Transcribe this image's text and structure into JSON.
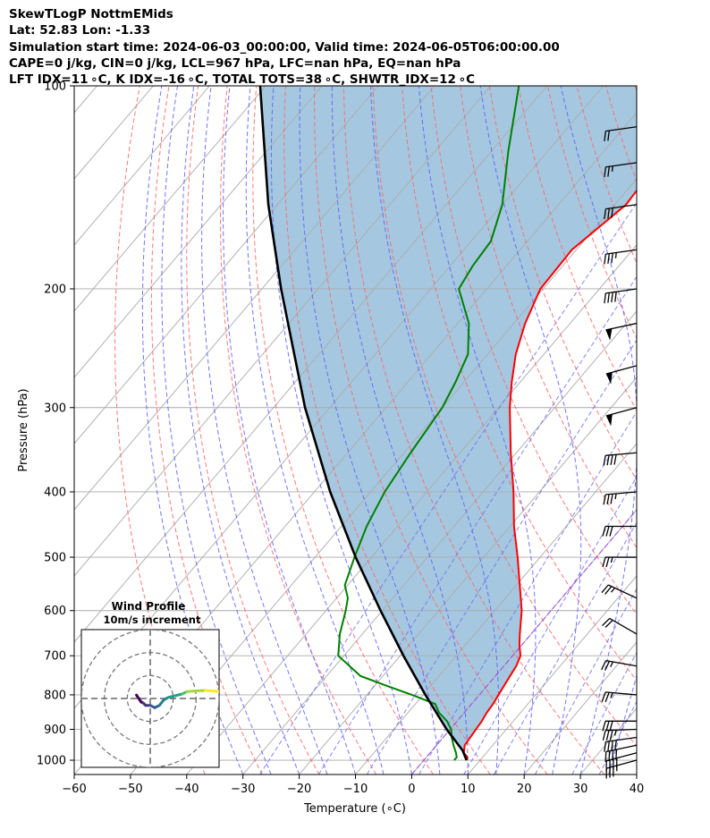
{
  "header": {
    "line1": "SkewTLogP NottmEMids",
    "line2": "Lat: 52.83   Lon: -1.33",
    "line3": "Simulation start time: 2024-06-03_00:00:00, Valid time: 2024-06-05T06:00:00.00",
    "line4": "CAPE=0 j/kg, CIN=0 j/kg, LCL=967 hPa, LFC=nan hPa, EQ=nan hPa",
    "line5": "LFT IDX=11 ∘C, K IDX=-16 ∘C, TOTAL TOTS=38 ∘C, SHWTR_IDX=12 ∘C"
  },
  "colors": {
    "temperature": "#ff0000",
    "dewpoint": "#008000",
    "parcel": "#000000",
    "shade": "#a5c8e0",
    "dry_adiabat": "#ff6060",
    "moist_adiabat": "#5a5aff",
    "mixing_ratio": "#6e6ef0",
    "isotherm": "#aaaaaa",
    "zero_isotherm": "#a040e0"
  },
  "chart_data": [
    {
      "type": "line",
      "chart_kind": "skew-t log-p diagram",
      "xlabel": "Temperature (∘C)",
      "ylabel": "Pressure (hPa)",
      "xlim": [
        -60,
        40
      ],
      "ylim": [
        1050,
        100
      ],
      "yscale": "log",
      "grid": true,
      "xticks": [
        -60,
        -50,
        -40,
        -30,
        -20,
        -10,
        0,
        10,
        20,
        30,
        40
      ],
      "yticks": [
        100,
        200,
        300,
        400,
        500,
        600,
        700,
        800,
        900,
        1000
      ],
      "series": [
        {
          "role": "temperature",
          "color": "#ff0000",
          "points": [
            [
              1000,
              7.6
            ],
            [
              990,
              7.3
            ],
            [
              975,
              6.0
            ],
            [
              950,
              5.0
            ],
            [
              925,
              4.8
            ],
            [
              900,
              4.6
            ],
            [
              875,
              4.4
            ],
            [
              850,
              4.0
            ],
            [
              825,
              3.8
            ],
            [
              800,
              3.4
            ],
            [
              775,
              3.0
            ],
            [
              750,
              2.6
            ],
            [
              725,
              2.2
            ],
            [
              700,
              1.4
            ],
            [
              675,
              -0.4
            ],
            [
              650,
              -2.0
            ],
            [
              600,
              -5.2
            ],
            [
              550,
              -9.4
            ],
            [
              500,
              -14.0
            ],
            [
              450,
              -19.3
            ],
            [
              400,
              -24.6
            ],
            [
              350,
              -31.0
            ],
            [
              300,
              -38.0
            ],
            [
              275,
              -41.5
            ],
            [
              250,
              -45.0
            ],
            [
              225,
              -48.0
            ],
            [
              200,
              -50.5
            ],
            [
              175,
              -50.8
            ],
            [
              150,
              -48.0
            ],
            [
              135,
              -48.5
            ],
            [
              125,
              -48.0
            ],
            [
              115,
              -48.0
            ],
            [
              100,
              -48.5
            ]
          ]
        },
        {
          "role": "dewpoint",
          "color": "#008000",
          "points": [
            [
              1000,
              5.4
            ],
            [
              990,
              5.4
            ],
            [
              975,
              4.6
            ],
            [
              950,
              3.0
            ],
            [
              925,
              1.5
            ],
            [
              900,
              0.2
            ],
            [
              875,
              -1.8
            ],
            [
              850,
              -4.5
            ],
            [
              825,
              -6.5
            ],
            [
              800,
              -12.0
            ],
            [
              775,
              -18.0
            ],
            [
              750,
              -24.0
            ],
            [
              700,
              -31.0
            ],
            [
              650,
              -34.0
            ],
            [
              600,
              -36.5
            ],
            [
              575,
              -38.0
            ],
            [
              550,
              -40.5
            ],
            [
              500,
              -43.0
            ],
            [
              450,
              -45.5
            ],
            [
              400,
              -47.5
            ],
            [
              350,
              -48.8
            ],
            [
              300,
              -50.0
            ],
            [
              275,
              -51.5
            ],
            [
              250,
              -53.5
            ],
            [
              225,
              -58.0
            ],
            [
              200,
              -65.0
            ],
            [
              185,
              -66.0
            ],
            [
              170,
              -66.5
            ],
            [
              150,
              -70.0
            ],
            [
              125,
              -77.0
            ],
            [
              100,
              -85.0
            ]
          ]
        },
        {
          "role": "parcel profile",
          "color": "#000000",
          "points": [
            [
              1000,
              7.6
            ],
            [
              967,
              5.4
            ],
            [
              900,
              -0.6
            ],
            [
              800,
              -9.6
            ],
            [
              700,
              -19.4
            ],
            [
              600,
              -30.3
            ],
            [
              500,
              -42.8
            ],
            [
              400,
              -57.2
            ],
            [
              300,
              -74.4
            ],
            [
              200,
              -96.6
            ],
            [
              150,
              -111.6
            ],
            [
              100,
              -131.0
            ]
          ]
        }
      ],
      "wind_barbs": [
        {
          "pressure": 1000,
          "speed_kt": 35,
          "direction_deg": 255
        },
        {
          "pressure": 975,
          "speed_kt": 40,
          "direction_deg": 255
        },
        {
          "pressure": 950,
          "speed_kt": 40,
          "direction_deg": 258
        },
        {
          "pressure": 925,
          "speed_kt": 40,
          "direction_deg": 262
        },
        {
          "pressure": 900,
          "speed_kt": 35,
          "direction_deg": 268
        },
        {
          "pressure": 875,
          "speed_kt": 30,
          "direction_deg": 270
        },
        {
          "pressure": 800,
          "speed_kt": 25,
          "direction_deg": 275
        },
        {
          "pressure": 725,
          "speed_kt": 25,
          "direction_deg": 280
        },
        {
          "pressure": 650,
          "speed_kt": 20,
          "direction_deg": 300
        },
        {
          "pressure": 575,
          "speed_kt": 25,
          "direction_deg": 295
        },
        {
          "pressure": 500,
          "speed_kt": 25,
          "direction_deg": 270
        },
        {
          "pressure": 450,
          "speed_kt": 30,
          "direction_deg": 270
        },
        {
          "pressure": 400,
          "speed_kt": 35,
          "direction_deg": 265
        },
        {
          "pressure": 350,
          "speed_kt": 40,
          "direction_deg": 265
        },
        {
          "pressure": 300,
          "speed_kt": 50,
          "direction_deg": 255
        },
        {
          "pressure": 260,
          "speed_kt": 50,
          "direction_deg": 255
        },
        {
          "pressure": 225,
          "speed_kt": 50,
          "direction_deg": 258
        },
        {
          "pressure": 200,
          "speed_kt": 40,
          "direction_deg": 262
        },
        {
          "pressure": 175,
          "speed_kt": 35,
          "direction_deg": 262
        },
        {
          "pressure": 150,
          "speed_kt": 30,
          "direction_deg": 262
        },
        {
          "pressure": 130,
          "speed_kt": 25,
          "direction_deg": 262
        },
        {
          "pressure": 115,
          "speed_kt": 20,
          "direction_deg": 262
        }
      ]
    },
    {
      "type": "line",
      "chart_kind": "hodograph",
      "title": "Wind Profile",
      "subtitle": "10m/s increment",
      "rings": [
        10,
        20,
        30
      ],
      "xlim": [
        -30,
        30
      ],
      "ylim": [
        -30,
        30
      ],
      "points": [
        [
          -6.0,
          1.5
        ],
        [
          -5.0,
          0.0
        ],
        [
          -4.0,
          -1.5
        ],
        [
          -3.0,
          -2.0
        ],
        [
          -2.0,
          -3.0
        ],
        [
          0.0,
          -3.0
        ],
        [
          2.0,
          -4.0
        ],
        [
          4.0,
          -3.0
        ],
        [
          6.0,
          -0.5
        ],
        [
          8.0,
          0.5
        ],
        [
          10.0,
          1.0
        ],
        [
          12.0,
          1.5
        ],
        [
          14.0,
          2.0
        ],
        [
          15.0,
          2.5
        ],
        [
          16.0,
          3.0
        ],
        [
          20.0,
          3.3
        ],
        [
          24.0,
          3.5
        ],
        [
          28.0,
          3.2
        ],
        [
          30.0,
          3.0
        ]
      ]
    }
  ]
}
